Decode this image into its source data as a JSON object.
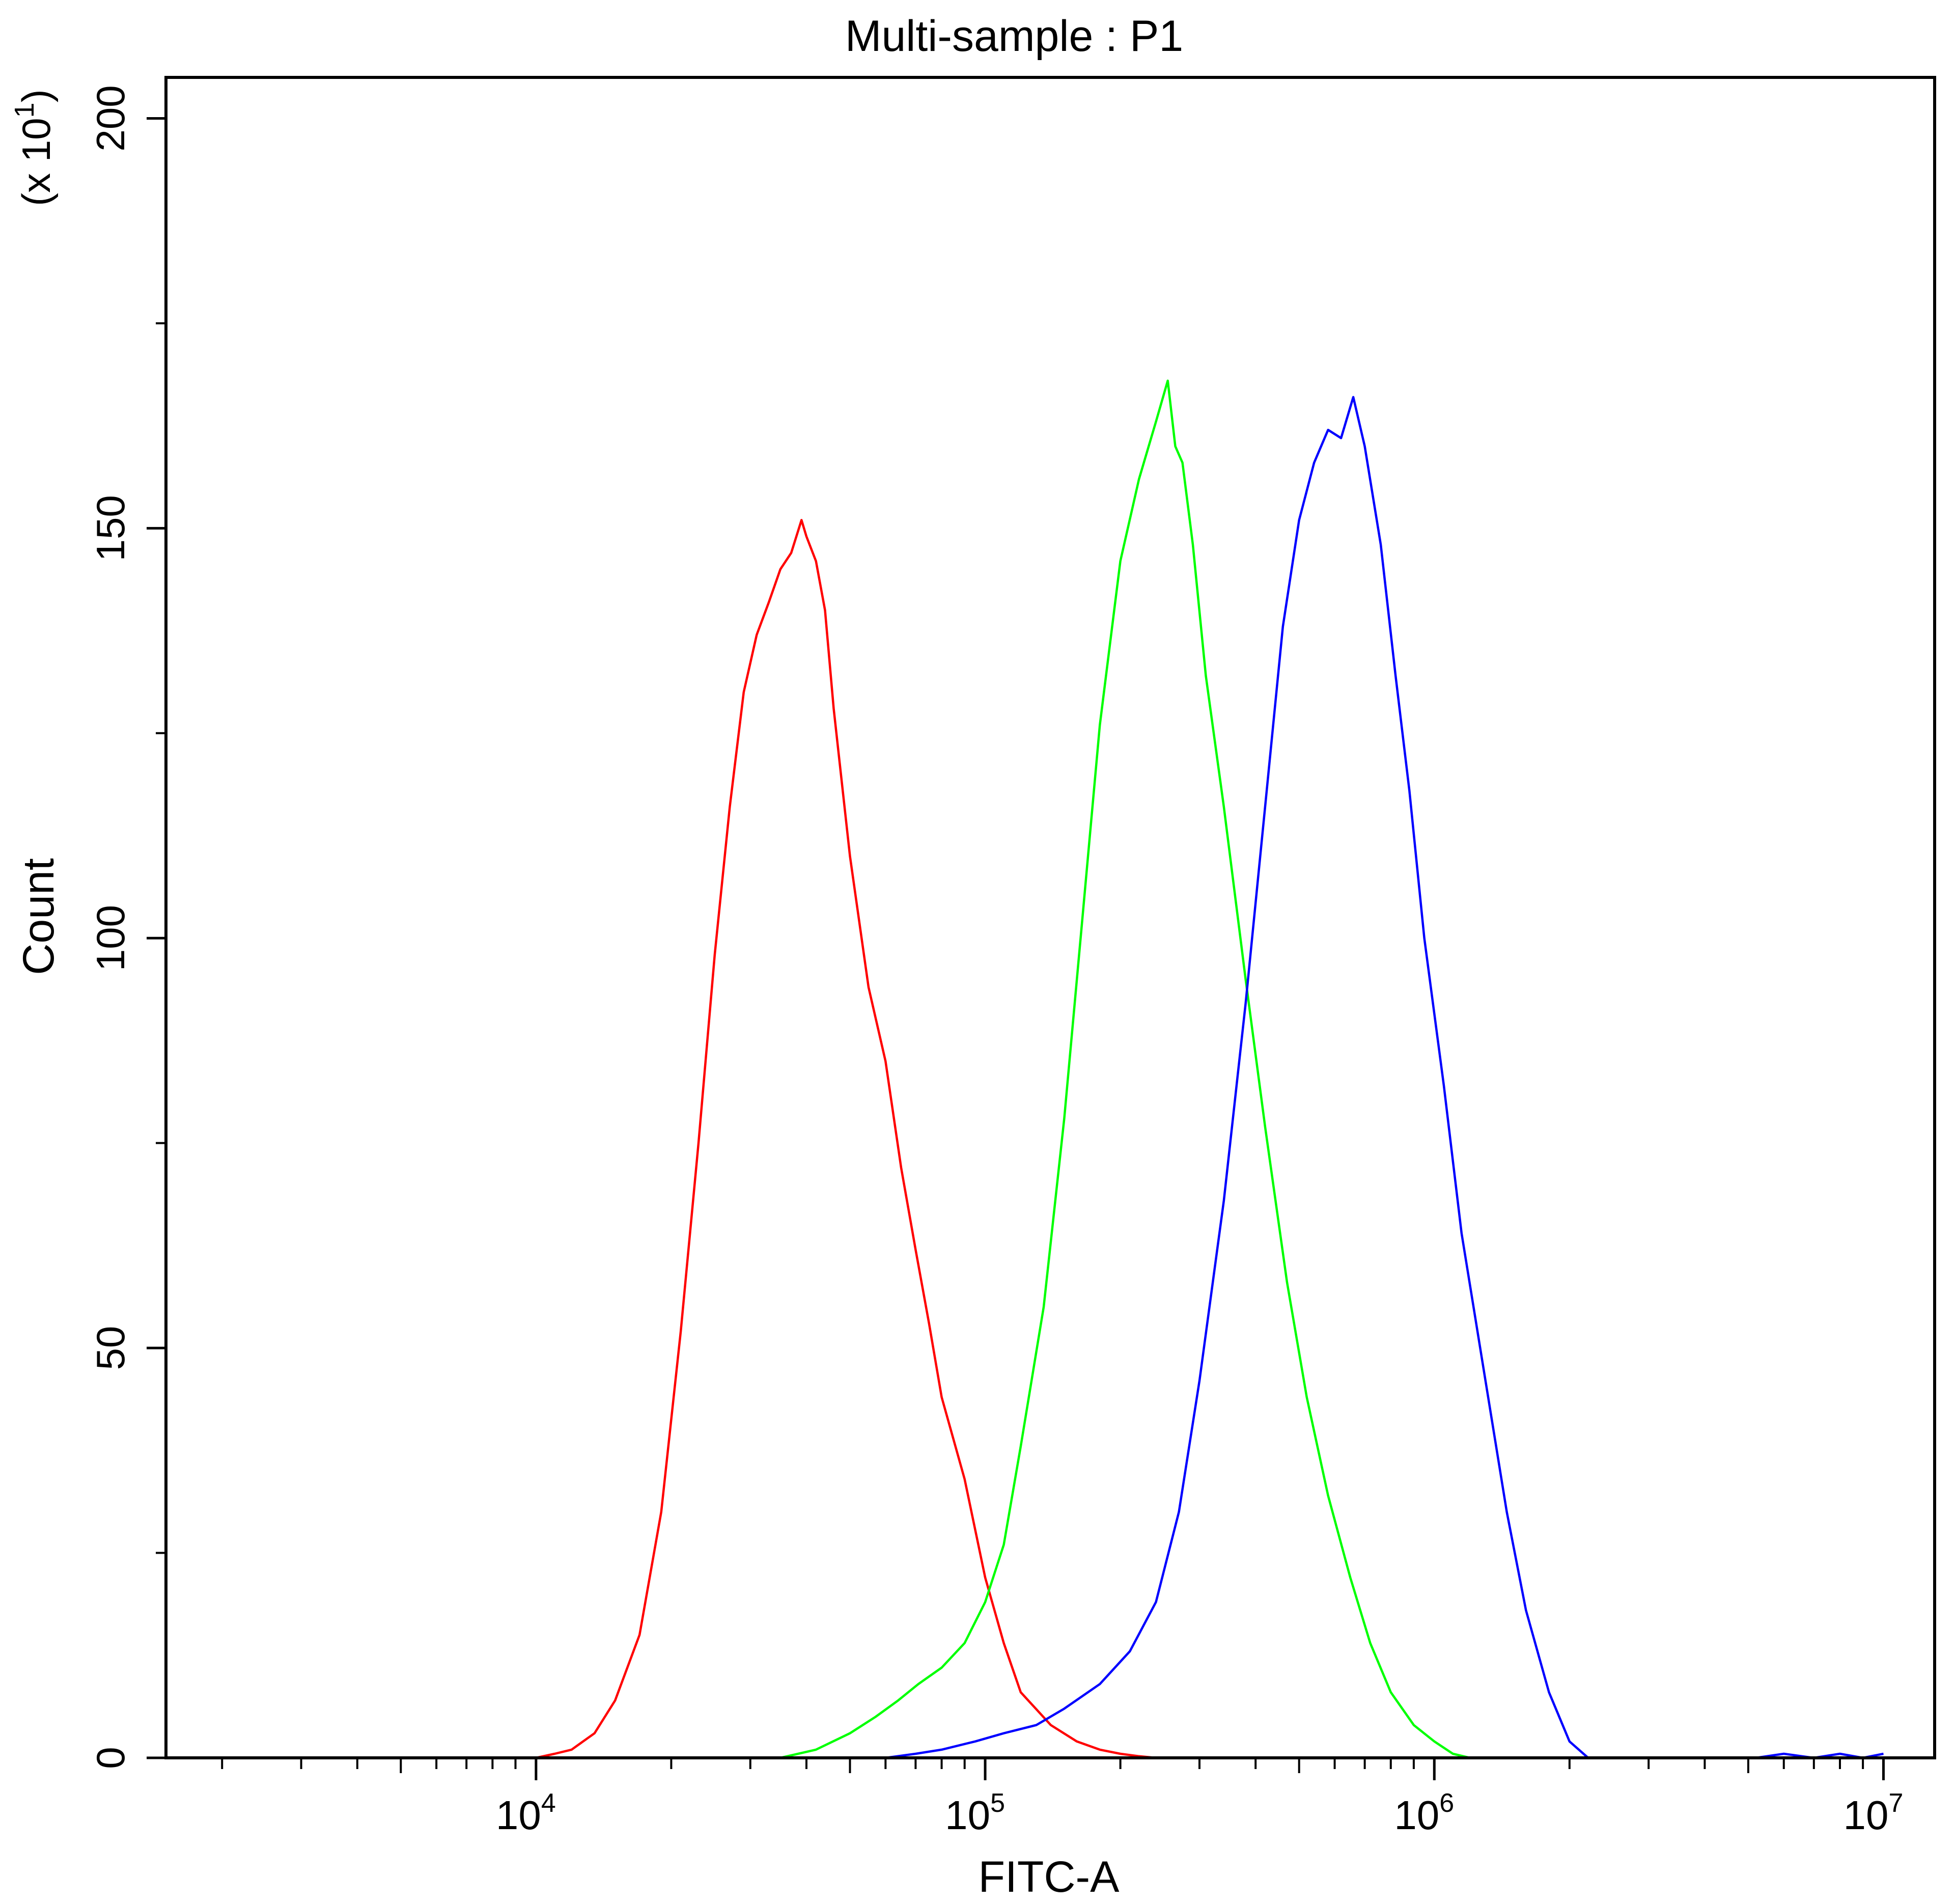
{
  "chart_data": {
    "type": "line",
    "title": "Multi-sample : P1",
    "xlabel": "FITC-A",
    "ylabel": "Count",
    "y_multiplier_label": "(x 10",
    "y_multiplier_exponent": "1",
    "y_multiplier_close": ")",
    "x_scale": "log",
    "xlim": [
      1500,
      13000000
    ],
    "ylim": [
      0,
      205
    ],
    "grid": false,
    "y_ticks": [
      {
        "value": 0,
        "label": "0"
      },
      {
        "value": 50,
        "label": "50"
      },
      {
        "value": 100,
        "label": "100"
      },
      {
        "value": 150,
        "label": "150"
      },
      {
        "value": 200,
        "label": "200"
      }
    ],
    "x_ticks": [
      {
        "value": 10000,
        "base": "10",
        "exp": "4"
      },
      {
        "value": 100000,
        "base": "10",
        "exp": "5"
      },
      {
        "value": 1000000,
        "base": "10",
        "exp": "6"
      },
      {
        "value": 10000000,
        "base": "10",
        "exp": "7"
      }
    ],
    "series": [
      {
        "color": "#ff0000",
        "x": [
          10000,
          11000,
          12000,
          13500,
          15000,
          17000,
          19000,
          21000,
          23000,
          25000,
          27000,
          29000,
          31000,
          33000,
          35000,
          37000,
          39000,
          40000,
          42000,
          44000,
          46000,
          50000,
          55000,
          60000,
          65000,
          70000,
          75000,
          80000,
          90000,
          100000,
          110000,
          120000,
          140000,
          160000,
          180000,
          200000,
          220000,
          240000
        ],
        "y": [
          0,
          0.5,
          1,
          3,
          7,
          15,
          30,
          52,
          75,
          98,
          116,
          130,
          137,
          141,
          145,
          147,
          151,
          149,
          146,
          140,
          128,
          110,
          94,
          85,
          72,
          62,
          53,
          44,
          34,
          22,
          14,
          8,
          4,
          2,
          1,
          0.5,
          0.2,
          0
        ]
      },
      {
        "color": "#00ff00",
        "x": [
          35000,
          42000,
          50000,
          57000,
          64000,
          71000,
          80000,
          90000,
          100000,
          110000,
          120000,
          135000,
          150000,
          165000,
          180000,
          200000,
          220000,
          240000,
          255000,
          265000,
          275000,
          290000,
          310000,
          340000,
          380000,
          420000,
          470000,
          520000,
          580000,
          650000,
          720000,
          800000,
          900000,
          1000000,
          1100000,
          1200000
        ],
        "y": [
          0,
          1,
          3,
          5,
          7,
          9,
          11,
          14,
          19,
          26,
          38,
          55,
          78,
          103,
          126,
          146,
          156,
          163,
          168,
          160,
          158,
          148,
          132,
          116,
          95,
          77,
          58,
          44,
          32,
          22,
          14,
          8,
          4,
          2,
          0.5,
          0
        ]
      },
      {
        "color": "#0000ff",
        "x": [
          60000,
          70000,
          80000,
          95000,
          110000,
          130000,
          150000,
          180000,
          210000,
          240000,
          270000,
          300000,
          340000,
          380000,
          420000,
          460000,
          500000,
          540000,
          580000,
          620000,
          660000,
          700000,
          760000,
          820000,
          880000,
          950000,
          1050000,
          1150000,
          1300000,
          1450000,
          1600000,
          1800000,
          2000000,
          2200000,
          5200000,
          6000000,
          7000000,
          8000000,
          9000000,
          10000000
        ],
        "y": [
          0,
          0.5,
          1,
          2,
          3,
          4,
          6,
          9,
          13,
          19,
          30,
          46,
          68,
          92,
          116,
          138,
          151,
          158,
          162,
          161,
          166,
          160,
          148,
          132,
          118,
          100,
          82,
          64,
          46,
          30,
          18,
          8,
          2,
          0,
          0,
          0.5,
          0,
          0.5,
          0,
          0.5
        ]
      }
    ]
  }
}
